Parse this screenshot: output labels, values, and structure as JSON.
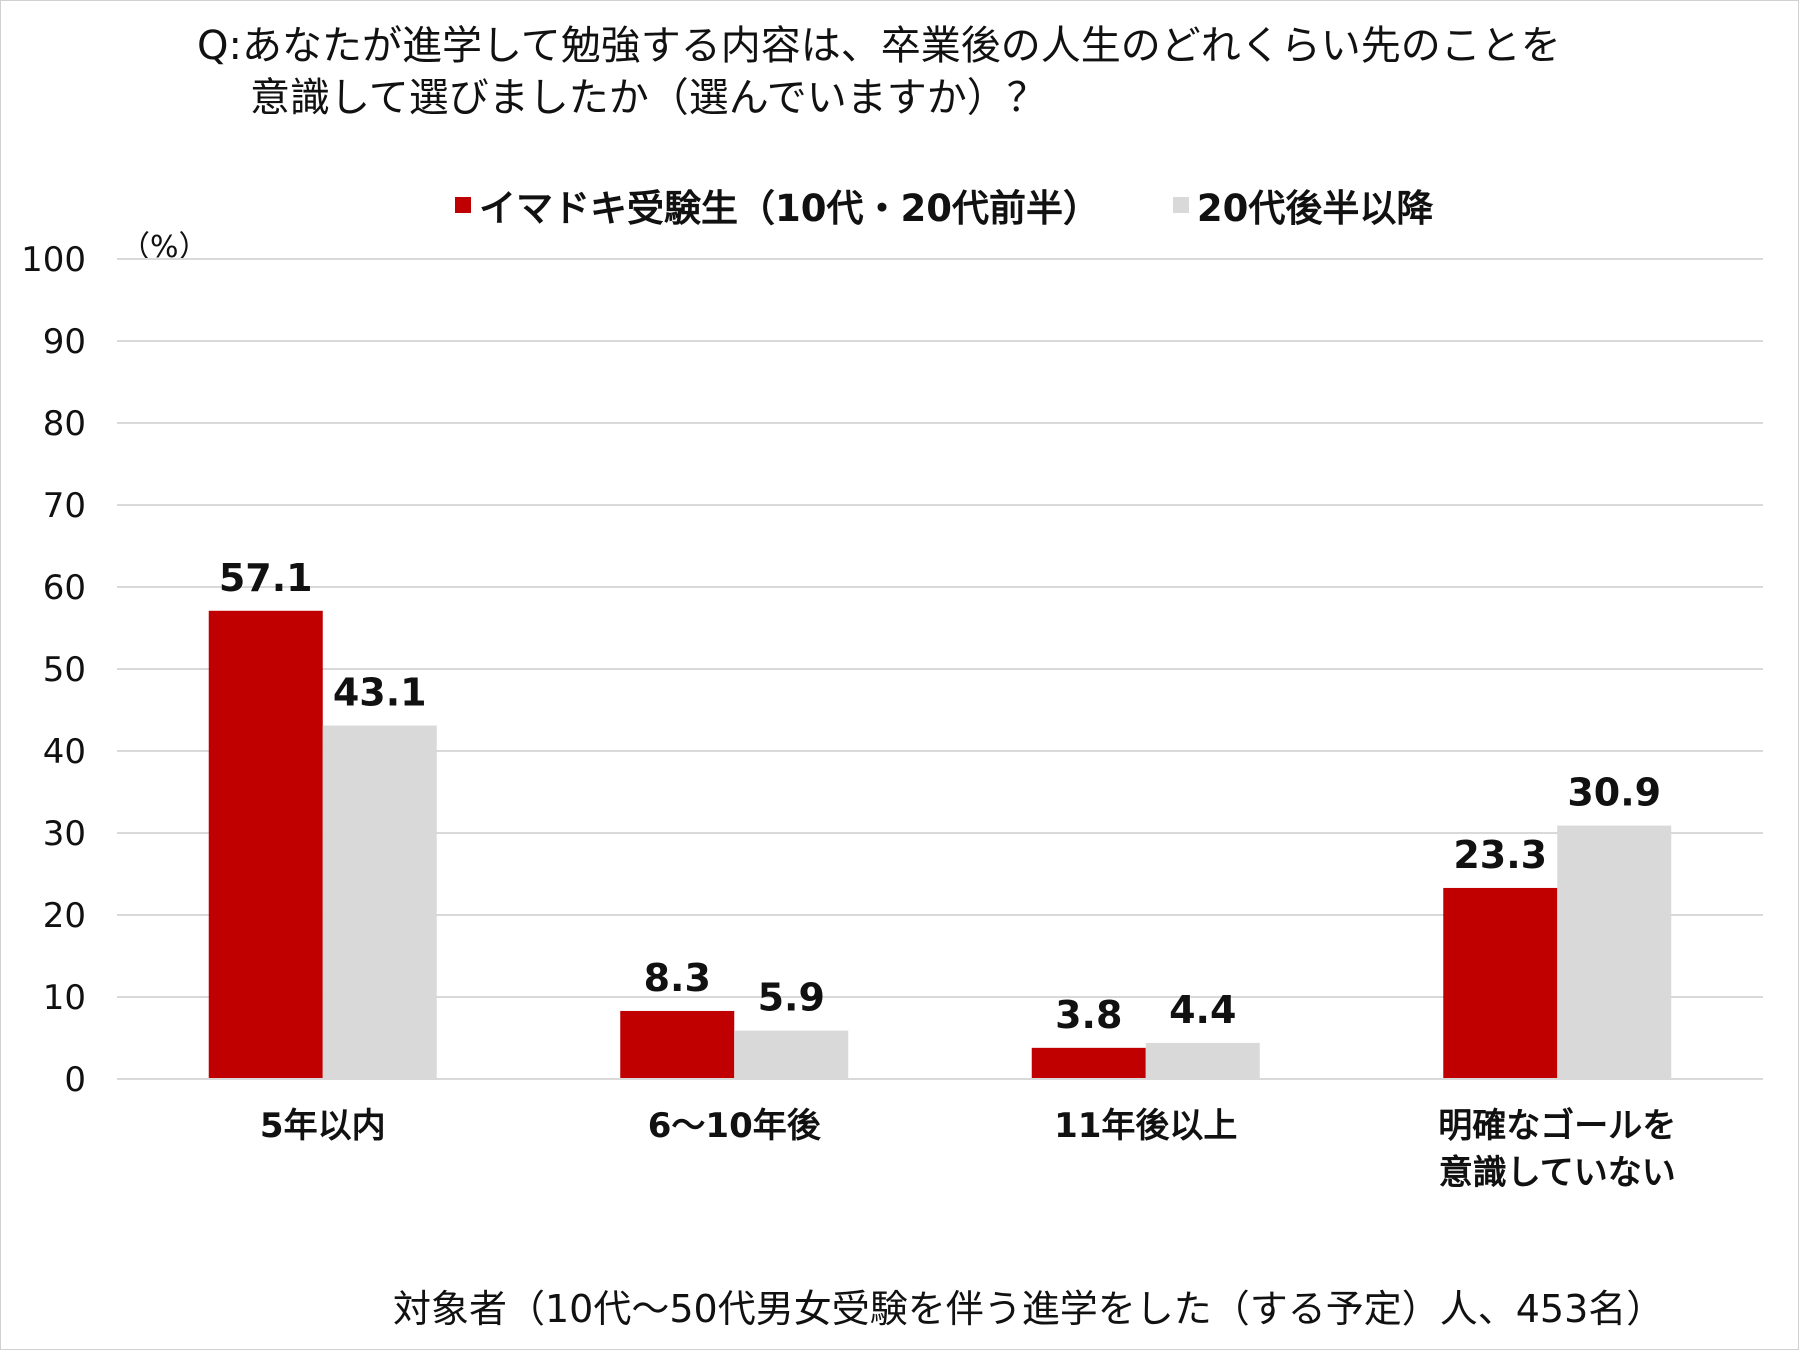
{
  "title": {
    "line1": "Q:あなたが進学して勉強する内容は、卒業後の人生のどれくらい先のことを",
    "line2": "意識して選びましたか（選んでいますか）？"
  },
  "unit_label": "（%）",
  "footnote": "対象者（10代～50代男女受験を伴う進学をした（する予定）人、453名）",
  "colors": {
    "series1": "#c00000",
    "series2": "#d9d9d9",
    "grid": "#d9d9d9"
  },
  "chart_data": {
    "type": "bar",
    "categories": [
      [
        "5年以内"
      ],
      [
        "6～10年後"
      ],
      [
        "11年後以上"
      ],
      [
        "明確なゴールを",
        "意識していない"
      ]
    ],
    "series": [
      {
        "name": "イマドキ受験生（10代・20代前半）",
        "values": [
          57.1,
          8.3,
          3.8,
          23.3
        ]
      },
      {
        "name": "20代後半以降",
        "values": [
          43.1,
          5.9,
          4.4,
          30.9
        ]
      }
    ],
    "y_ticks": [
      0,
      10,
      20,
      30,
      40,
      50,
      60,
      70,
      80,
      90,
      100
    ],
    "ylim": [
      0,
      100
    ],
    "grid": true,
    "legend_position": "top"
  }
}
